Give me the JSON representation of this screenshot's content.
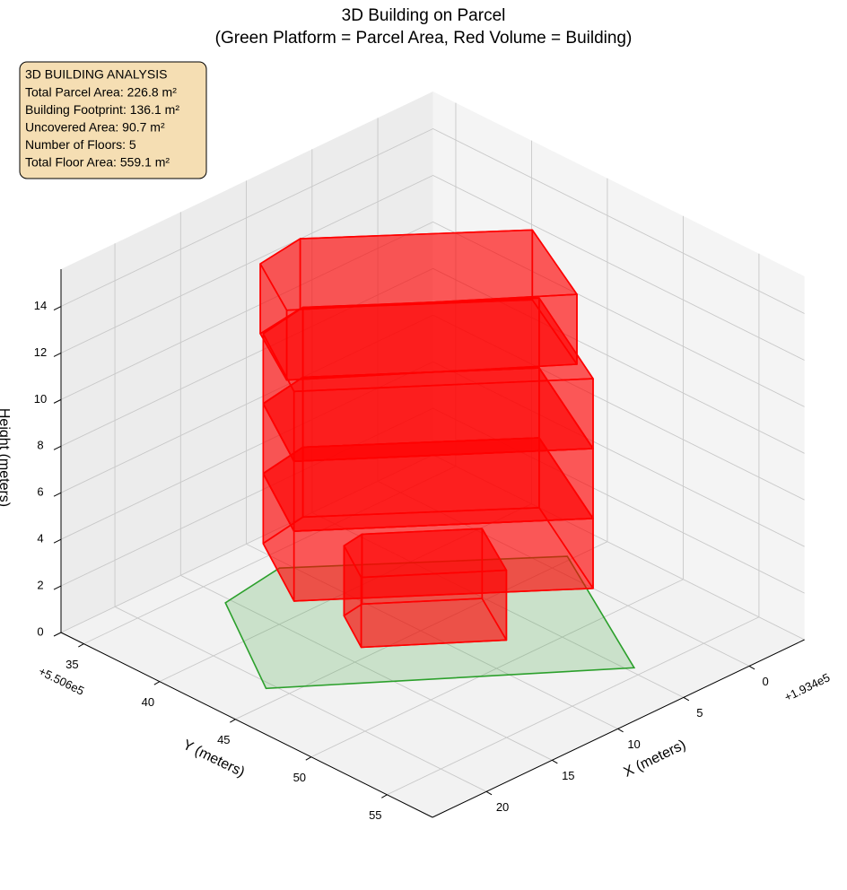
{
  "chart_data": {
    "type": "3d-polygon-volumes",
    "title": "3D Building on Parcel",
    "subtitle": "(Green Platform = Parcel Area, Red Volume = Building)",
    "xlabel": "X (meters)",
    "ylabel": "Y (meters)",
    "zlabel": "Height (meters)",
    "x_offset": "+1.934e5",
    "y_offset": "+5.506e5",
    "xlim": [
      -4.2,
      24.1
    ],
    "ylim": [
      33.5,
      58
    ],
    "zlim": [
      0,
      15.6
    ],
    "xticks": [
      0,
      5,
      10,
      15,
      20
    ],
    "yticks": [
      35,
      40,
      45,
      50,
      55
    ],
    "zticks": [
      0,
      2,
      4,
      6,
      8,
      10,
      12,
      14
    ],
    "grid": true,
    "parcel": {
      "color": "#2ca02c",
      "x": [
        15.4,
        10.6,
        -1.5,
        4.6,
        20.5
      ],
      "y": [
        36.8,
        36.2,
        44.7,
        54.4,
        43.9
      ]
    },
    "volumes": [
      {
        "color": "#ff0000",
        "x": [
          9.3,
          5.7,
          -4.2,
          0.0,
          12.6
        ],
        "y": [
          34.0,
          33.5,
          40.5,
          47.7,
          38.9
        ],
        "z": [
          0,
          3
        ]
      },
      {
        "color": "#ff0000",
        "x": [
          9.3,
          5.7,
          -4.2,
          0.0,
          12.6
        ],
        "y": [
          34.0,
          33.5,
          40.5,
          47.7,
          38.9
        ],
        "z": [
          3,
          6
        ]
      },
      {
        "color": "#ff0000",
        "x": [
          9.3,
          5.7,
          -4.2,
          0.0,
          12.6
        ],
        "y": [
          34.0,
          33.5,
          40.5,
          47.7,
          38.9
        ],
        "z": [
          6,
          9
        ]
      },
      {
        "color": "#ff0000",
        "x": [
          9.4,
          5.9,
          -3.8,
          -0.5,
          12.0
        ],
        "y": [
          33.9,
          33.5,
          40.4,
          46.2,
          37.9
        ],
        "z": [
          9,
          12
        ]
      },
      {
        "color": "#ff0000",
        "x": [
          11.8,
          10.2,
          5.1,
          7.4,
          13.6
        ],
        "y": [
          41.5,
          41.3,
          44.8,
          48.4,
          44.2
        ],
        "z": [
          0,
          3
        ]
      }
    ],
    "annotation": [
      "3D BUILDING ANALYSIS",
      "Total Parcel Area: 226.8 m²",
      "Building Footprint: 136.1 m²",
      "Uncovered Area: 90.7 m²",
      "Number of Floors: 5",
      "Total Floor Area: 559.1 m²"
    ]
  }
}
